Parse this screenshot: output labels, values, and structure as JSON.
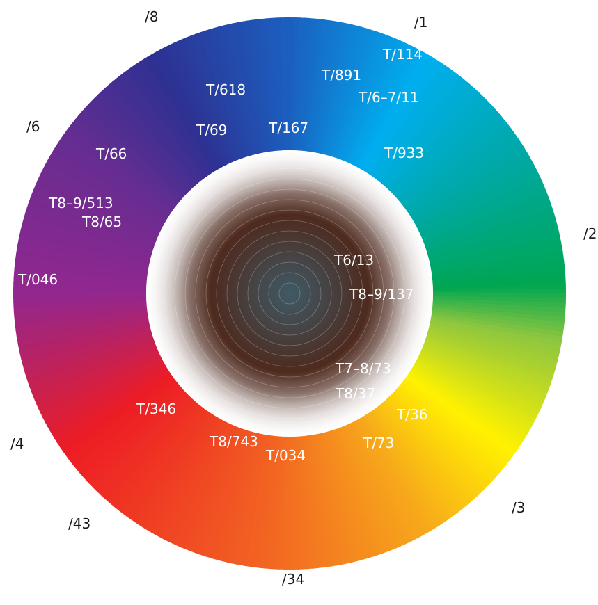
{
  "wheel": {
    "gradient_stops": [
      {
        "angle": 0,
        "color": "#1b5fbf"
      },
      {
        "angle": 30,
        "color": "#00aeef"
      },
      {
        "angle": 62,
        "color": "#00a89d"
      },
      {
        "angle": 88,
        "color": "#00a651"
      },
      {
        "angle": 100,
        "color": "#8dc63f"
      },
      {
        "angle": 125,
        "color": "#fff200"
      },
      {
        "angle": 150,
        "color": "#f7a81b"
      },
      {
        "angle": 185,
        "color": "#f26522"
      },
      {
        "angle": 235,
        "color": "#ed1c24"
      },
      {
        "angle": 270,
        "color": "#92278f"
      },
      {
        "angle": 305,
        "color": "#662d91"
      },
      {
        "angle": 330,
        "color": "#2e3192"
      },
      {
        "angle": 360,
        "color": "#1b5fbf"
      }
    ],
    "center_colors": {
      "core": "#3f5a66",
      "mid": "#4e2a1e",
      "edge": "#ffffff"
    }
  },
  "outer_labels": [
    {
      "id": "l1",
      "text": "/1"
    },
    {
      "id": "l2",
      "text": "/2"
    },
    {
      "id": "l3",
      "text": "/3"
    },
    {
      "id": "l34",
      "text": "/34"
    },
    {
      "id": "l43",
      "text": "/43"
    },
    {
      "id": "l4",
      "text": "/4"
    },
    {
      "id": "l6",
      "text": "/6"
    },
    {
      "id": "l8",
      "text": "/8"
    }
  ],
  "inner_labels": [
    {
      "id": "t114",
      "text": "T/114"
    },
    {
      "id": "t891",
      "text": "T/891"
    },
    {
      "id": "t6711",
      "text": "T/6–7/11"
    },
    {
      "id": "t618",
      "text": "T/618"
    },
    {
      "id": "t69",
      "text": "T/69"
    },
    {
      "id": "t167",
      "text": "T/167"
    },
    {
      "id": "t933",
      "text": "T/933"
    },
    {
      "id": "t66",
      "text": "T/66"
    },
    {
      "id": "t89513",
      "text": "T8–9/513"
    },
    {
      "id": "t865",
      "text": "T8/65"
    },
    {
      "id": "t046",
      "text": "T/046"
    },
    {
      "id": "t613",
      "text": "T6/13"
    },
    {
      "id": "t89137",
      "text": "T8–9/137"
    },
    {
      "id": "t7873",
      "text": "T7–8/73"
    },
    {
      "id": "t837",
      "text": "T8/37"
    },
    {
      "id": "t36",
      "text": "T/36"
    },
    {
      "id": "t73",
      "text": "T/73"
    },
    {
      "id": "t346",
      "text": "T/346"
    },
    {
      "id": "t8743",
      "text": "T8/743"
    },
    {
      "id": "t034",
      "text": "T/034"
    }
  ]
}
